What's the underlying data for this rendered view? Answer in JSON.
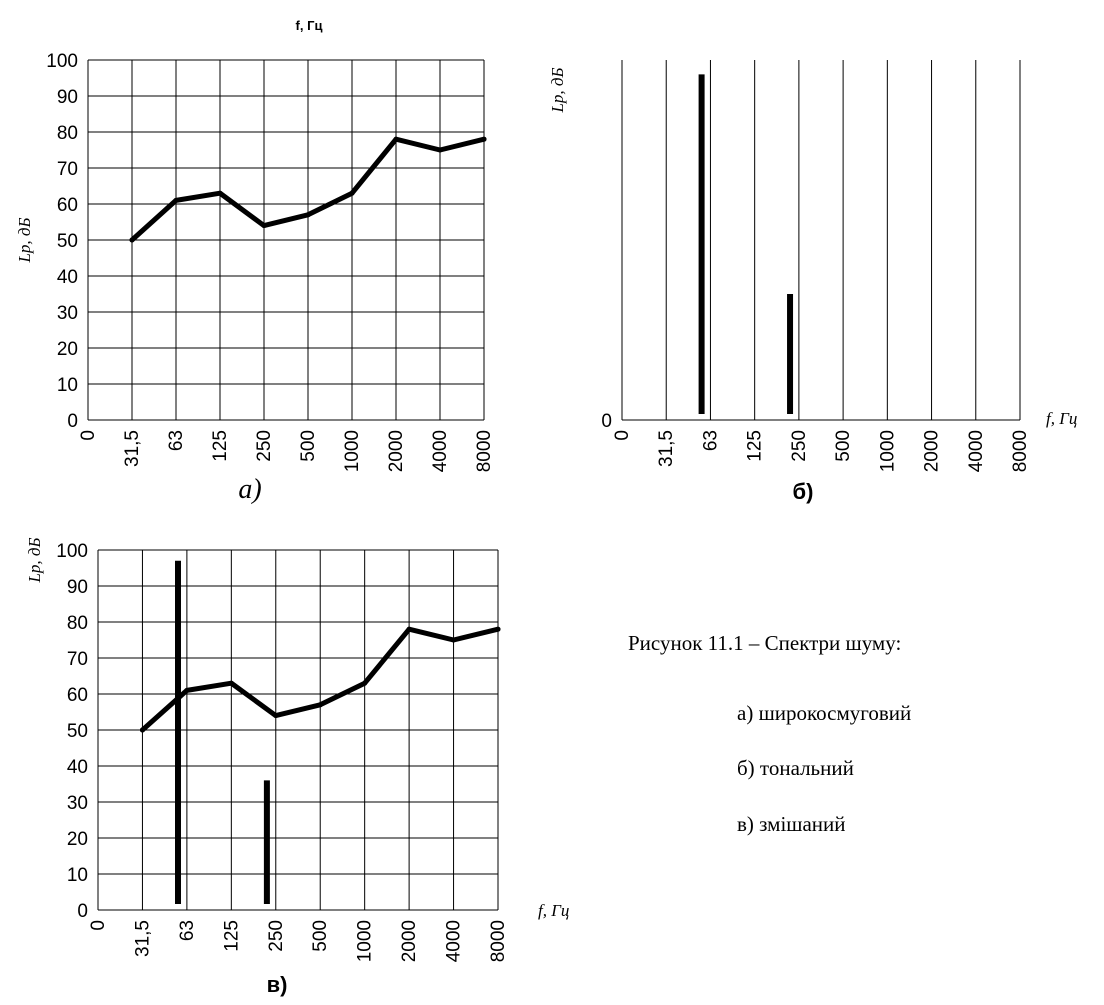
{
  "chart_data": [
    {
      "panel": "a",
      "type": "line",
      "top_label": "f, Гц",
      "ylabel": "Lp, дБ",
      "xlabel": "",
      "panel_label": "а)",
      "y_ticks": [
        0,
        10,
        20,
        30,
        40,
        50,
        60,
        70,
        80,
        90,
        100
      ],
      "ylim": [
        0,
        100
      ],
      "categories": [
        "0",
        "31,5",
        "63",
        "125",
        "250",
        "500",
        "1000",
        "2000",
        "4000",
        "8000"
      ],
      "grid": true,
      "series": [
        {
          "x": [
            "31,5",
            "63",
            "125",
            "250",
            "500",
            "1000",
            "2000",
            "4000",
            "8000"
          ],
          "values": [
            50,
            61,
            63,
            54,
            57,
            63,
            78,
            75,
            78
          ]
        }
      ]
    },
    {
      "panel": "б",
      "type": "bar",
      "ylabel": "Lp, дБ",
      "xlabel": "f, Гц",
      "panel_label": "б)",
      "y_ticks": [
        0
      ],
      "ylim": [
        0,
        100
      ],
      "categories": [
        "0",
        "31,5",
        "63",
        "125",
        "250",
        "500",
        "1000",
        "2000",
        "4000",
        "8000"
      ],
      "grid": "vertical",
      "tones": [
        {
          "position": 1.8,
          "value": 96
        },
        {
          "position": 3.8,
          "value": 35
        }
      ]
    },
    {
      "panel": "в",
      "type": "line",
      "ylabel": "Lp, дБ",
      "xlabel": "f, Гц",
      "panel_label": "в)",
      "y_ticks": [
        0,
        10,
        20,
        30,
        40,
        50,
        60,
        70,
        80,
        90,
        100
      ],
      "ylim": [
        0,
        100
      ],
      "categories": [
        "0",
        "31,5",
        "63",
        "125",
        "250",
        "500",
        "1000",
        "2000",
        "4000",
        "8000"
      ],
      "grid": true,
      "series": [
        {
          "x": [
            "31,5",
            "63",
            "125",
            "250",
            "500",
            "1000",
            "2000",
            "4000",
            "8000"
          ],
          "values": [
            50,
            61,
            63,
            54,
            57,
            63,
            78,
            75,
            78
          ]
        }
      ],
      "tones": [
        {
          "position": 1.8,
          "value": 97
        },
        {
          "position": 3.8,
          "value": 36
        }
      ]
    }
  ],
  "caption": {
    "title": "Рисунок 11.1 – Спектри шуму:",
    "items": [
      "а) широкосмуговий",
      "б) тональний",
      "в) змішаний"
    ]
  }
}
